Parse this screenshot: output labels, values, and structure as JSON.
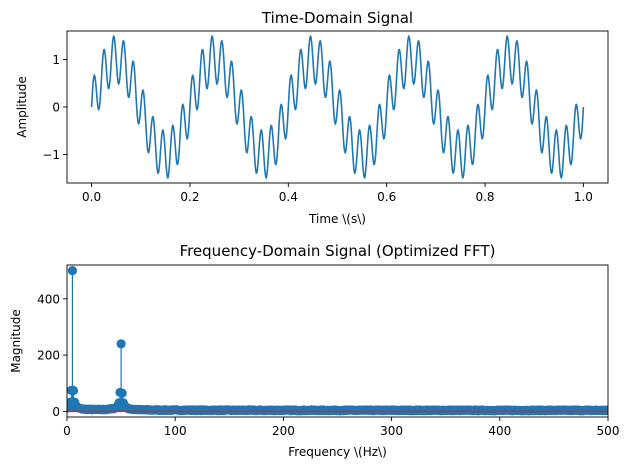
{
  "chart_data": [
    {
      "type": "line",
      "title": "Time-Domain Signal",
      "xlabel": "Time \\(s\\)",
      "ylabel": "Amplitude",
      "xlim": [
        -0.05,
        1.05
      ],
      "ylim": [
        -1.6,
        1.6
      ],
      "xticks": [
        0.0,
        0.2,
        0.4,
        0.6,
        0.8,
        1.0
      ],
      "xtick_labels": [
        "0.0",
        "0.2",
        "0.4",
        "0.6",
        "0.8",
        "1.0"
      ],
      "yticks": [
        -1,
        0,
        1
      ],
      "ytick_labels": [
        "−1",
        "0",
        "1"
      ],
      "grid": false,
      "series": [
        {
          "color": "#1f77b4",
          "x_range": [
            0,
            1
          ],
          "components": [
            {
              "amplitude": 1.0,
              "frequency": 5
            },
            {
              "amplitude": 0.5,
              "frequency": 50
            }
          ]
        }
      ]
    },
    {
      "type": "stem",
      "title": "Frequency-Domain Signal (Optimized FFT)",
      "xlabel": "Frequency \\(Hz\\)",
      "ylabel": "Magnitude",
      "xlim": [
        0,
        500
      ],
      "ylim": [
        -20,
        520
      ],
      "xticks": [
        0,
        100,
        200,
        300,
        400,
        500
      ],
      "xtick_labels": [
        "0",
        "100",
        "200",
        "300",
        "400",
        "500"
      ],
      "yticks": [
        0,
        200,
        400
      ],
      "ytick_labels": [
        "0",
        "200",
        "400"
      ],
      "grid": false,
      "marker_color": "#1f77b4",
      "baseline_color": "#d62728",
      "peaks": [
        {
          "x": 5,
          "y": 500
        },
        {
          "x": 50,
          "y": 240
        }
      ]
    }
  ]
}
